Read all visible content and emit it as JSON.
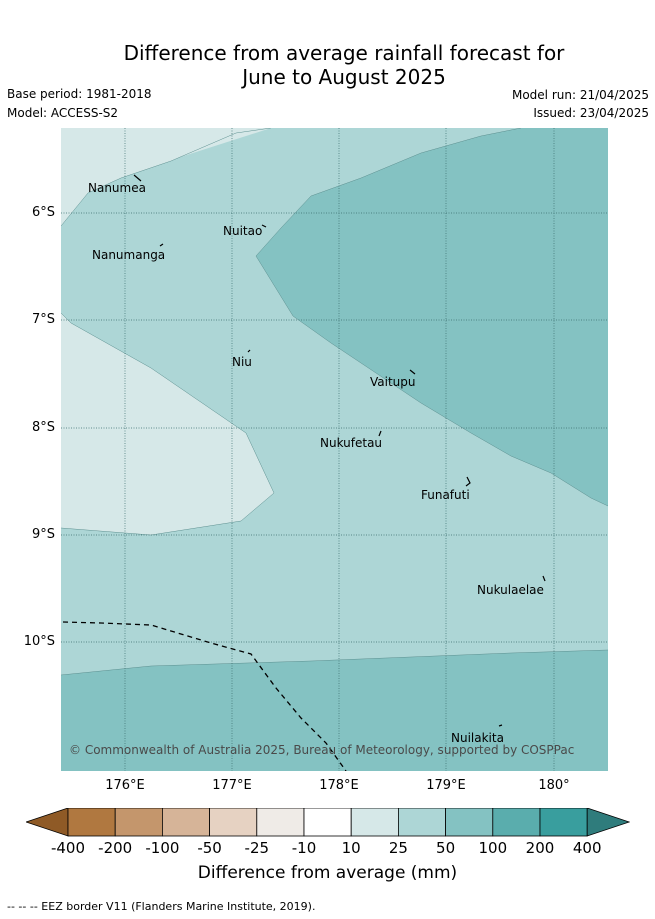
{
  "title_line1": "Difference from average rainfall forecast for",
  "title_line2": "June to August 2025",
  "base_period": "Base period: 1981-2018",
  "model": "Model: ACCESS-S2",
  "model_run": "Model run: 21/04/2025",
  "issued": "Issued: 23/04/2025",
  "copyright": "© Commonwealth of Australia 2025, Bureau of Meteorology, supported by COSPPac",
  "lat_labels": [
    "6°S",
    "7°S",
    "8°S",
    "9°S",
    "10°S"
  ],
  "lon_labels": [
    "176°E",
    "177°E",
    "178°E",
    "179°E",
    "180°"
  ],
  "places": [
    "Nanumea",
    "Nuitao",
    "Nanumanga",
    "Niu",
    "Vaitupu",
    "Nukufetau",
    "Funafuti",
    "Nukulaelae",
    "Nuilakita"
  ],
  "colorbar": {
    "ticks": [
      "-400",
      "-200",
      "-100",
      "-50",
      "-25",
      "-10",
      "10",
      "25",
      "50",
      "100",
      "200",
      "400"
    ],
    "colors": [
      "#8f5a26",
      "#b07840",
      "#c4966c",
      "#d6b498",
      "#e6d2c2",
      "#efebe7",
      "#ffffff",
      "#d6e8e8",
      "#add6d6",
      "#84c2c2",
      "#5aadad",
      "#399e9e",
      "#2f7c7c"
    ],
    "title": "Difference from average (mm)"
  },
  "footer": "-- -- -- EEZ border V11 (Flanders Marine Institute, 2019).",
  "colors": {
    "light": "#d6e8e8",
    "mid": "#add6d6",
    "dark": "#84c2c2",
    "grid": "#3a6e6e"
  }
}
